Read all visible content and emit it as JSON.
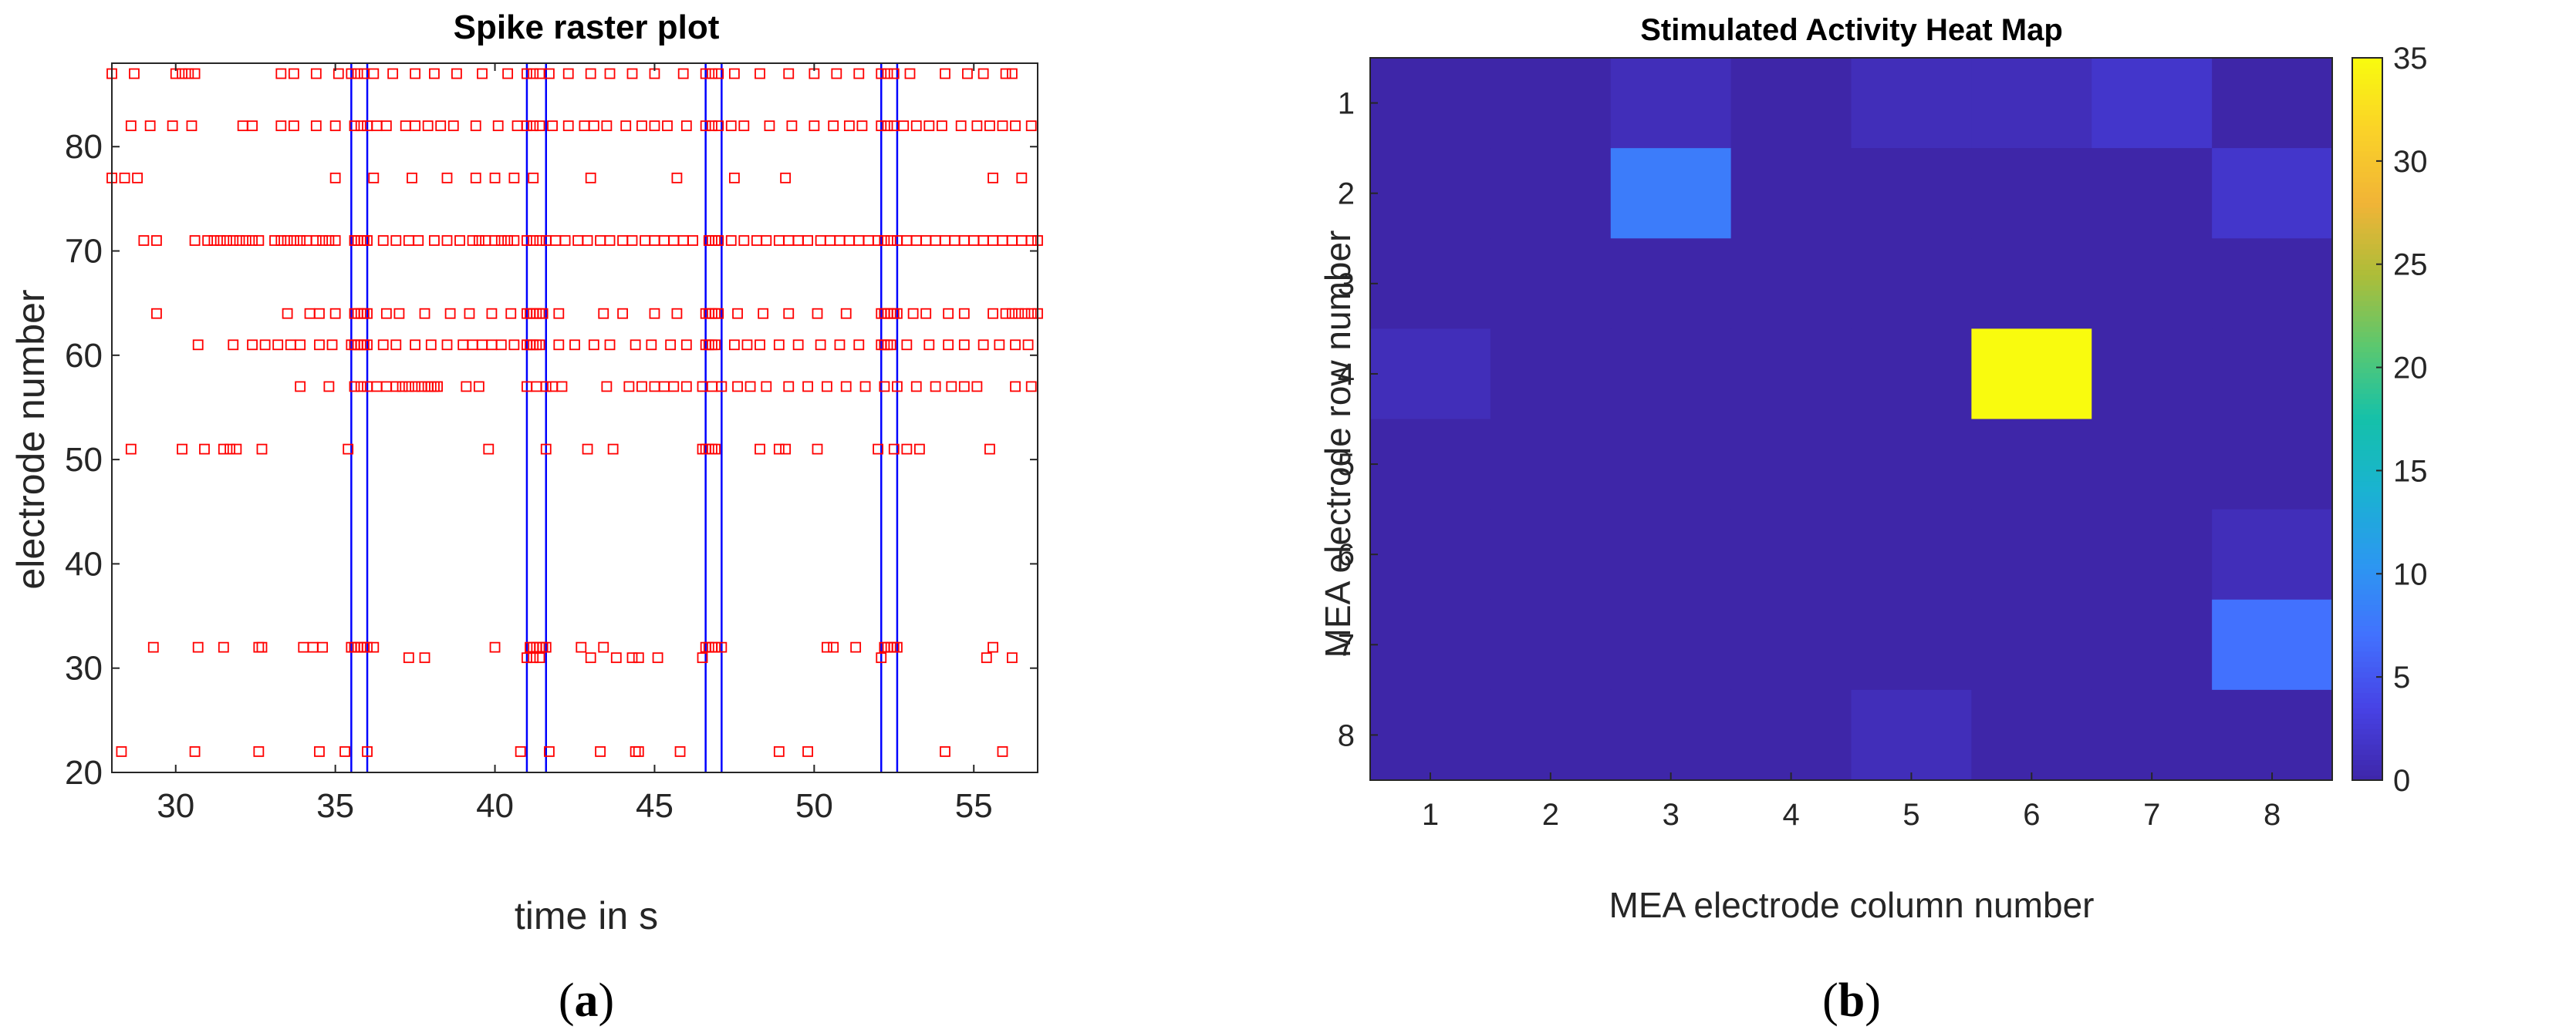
{
  "panels": {
    "a": {
      "label_prefix": "(",
      "label_letter": "a",
      "label_suffix": ")"
    },
    "b": {
      "label_prefix": "(",
      "label_letter": "b",
      "label_suffix": ")"
    }
  },
  "chart_data": [
    {
      "type": "scatter",
      "title": "Spike raster plot",
      "xlabel": "time in s",
      "ylabel": "electrode number",
      "xlim": [
        28,
        57
      ],
      "ylim": [
        20,
        88
      ],
      "xticks": [
        30,
        35,
        40,
        45,
        50,
        55
      ],
      "yticks": [
        20,
        30,
        40,
        50,
        60,
        70,
        80
      ],
      "marker": "hollow-square",
      "marker_color": "#ff0000",
      "stim_line_color": "#0000ff",
      "stimulus_lines": [
        35.5,
        36.0,
        41.0,
        41.6,
        46.6,
        47.1,
        52.1,
        52.6
      ],
      "grid": false,
      "series": [
        {
          "electrode": 87,
          "times": [
            28.0,
            28.7,
            30.0,
            30.2,
            30.4,
            30.6,
            33.3,
            33.7,
            34.4,
            35.1,
            35.5,
            35.7,
            35.9,
            36.2,
            36.8,
            37.5,
            38.1,
            38.8,
            39.6,
            40.4,
            41.0,
            41.2,
            41.4,
            41.7,
            42.3,
            43.0,
            43.6,
            44.3,
            45.0,
            45.9,
            46.6,
            46.8,
            47.0,
            47.5,
            48.3,
            49.2,
            50.0,
            50.7,
            51.4,
            52.1,
            52.3,
            52.5,
            53.0,
            54.1,
            54.8,
            55.3,
            56.0,
            56.2
          ]
        },
        {
          "electrode": 82,
          "times": [
            28.6,
            29.2,
            29.9,
            30.5,
            32.1,
            32.4,
            33.3,
            33.7,
            34.4,
            35.0,
            35.6,
            35.8,
            36.0,
            36.3,
            36.6,
            37.2,
            37.5,
            37.9,
            38.3,
            38.7,
            39.4,
            40.1,
            40.7,
            41.0,
            41.2,
            41.4,
            41.8,
            42.3,
            42.8,
            43.1,
            43.5,
            44.1,
            44.6,
            45.0,
            45.4,
            46.0,
            46.6,
            46.8,
            47.0,
            47.4,
            47.8,
            48.6,
            49.3,
            50.0,
            50.6,
            51.1,
            51.5,
            52.1,
            52.3,
            52.5,
            52.8,
            53.2,
            53.6,
            54.0,
            54.6,
            55.1,
            55.5,
            55.9,
            56.3,
            56.8
          ]
        },
        {
          "electrode": 77,
          "times": [
            28.0,
            28.4,
            28.8,
            35.0,
            36.2,
            37.4,
            38.5,
            39.4,
            40.0,
            40.6,
            41.2,
            43.0,
            45.7,
            47.5,
            49.1,
            55.6,
            56.5
          ]
        },
        {
          "electrode": 71,
          "times": [
            29.0,
            29.4,
            30.6,
            31.0,
            31.2,
            31.4,
            31.6,
            31.8,
            32.0,
            32.2,
            32.4,
            32.6,
            33.1,
            33.3,
            33.5,
            33.7,
            33.9,
            34.1,
            34.4,
            34.6,
            34.8,
            35.0,
            35.6,
            35.7,
            35.8,
            35.9,
            36.0,
            36.5,
            36.9,
            37.3,
            37.6,
            38.1,
            38.5,
            38.9,
            39.3,
            39.5,
            39.7,
            40.0,
            40.2,
            40.4,
            40.6,
            41.0,
            41.2,
            41.4,
            41.6,
            41.9,
            42.2,
            42.6,
            42.9,
            43.3,
            43.6,
            44.0,
            44.3,
            44.7,
            45.0,
            45.3,
            45.6,
            45.9,
            46.2,
            46.7,
            46.8,
            46.9,
            47.0,
            47.4,
            47.8,
            48.2,
            48.5,
            48.9,
            49.2,
            49.5,
            49.8,
            50.2,
            50.5,
            50.8,
            51.1,
            51.4,
            51.7,
            52.0,
            52.2,
            52.4,
            52.6,
            52.9,
            53.2,
            53.5,
            53.8,
            54.1,
            54.4,
            54.7,
            55.0,
            55.3,
            55.6,
            55.9,
            56.2,
            56.5,
            56.8,
            57.0
          ]
        },
        {
          "electrode": 64,
          "times": [
            29.4,
            33.5,
            34.2,
            34.5,
            35.0,
            35.6,
            35.7,
            35.8,
            35.9,
            36.0,
            36.6,
            37.0,
            37.8,
            38.6,
            39.2,
            39.9,
            40.5,
            41.0,
            41.1,
            41.2,
            41.3,
            41.4,
            41.5,
            42.0,
            43.4,
            44.0,
            45.0,
            45.7,
            46.6,
            46.7,
            46.8,
            46.9,
            47.0,
            47.6,
            48.4,
            49.2,
            50.1,
            51.0,
            52.1,
            52.2,
            52.3,
            52.4,
            52.5,
            52.6,
            53.1,
            53.5,
            54.2,
            54.7,
            55.6,
            56.0,
            56.2,
            56.4,
            56.6,
            56.8,
            57.0
          ]
        },
        {
          "electrode": 61,
          "times": [
            30.7,
            31.8,
            32.4,
            32.8,
            33.2,
            33.6,
            33.9,
            34.5,
            34.9,
            35.5,
            35.6,
            35.7,
            35.8,
            35.9,
            36.0,
            36.5,
            36.9,
            37.5,
            38.0,
            38.5,
            39.0,
            39.3,
            39.6,
            39.9,
            40.2,
            40.6,
            41.0,
            41.1,
            41.2,
            41.3,
            41.4,
            42.0,
            42.5,
            43.1,
            43.6,
            44.4,
            44.9,
            45.5,
            46.0,
            46.6,
            46.7,
            46.8,
            46.9,
            47.5,
            47.9,
            48.3,
            48.9,
            49.5,
            50.2,
            50.8,
            51.4,
            52.1,
            52.2,
            52.3,
            52.4,
            52.9,
            53.6,
            54.2,
            54.7,
            55.3,
            55.8,
            56.3,
            56.7
          ]
        },
        {
          "electrode": 57,
          "times": [
            33.9,
            34.8,
            35.6,
            35.8,
            36.0,
            36.3,
            36.6,
            36.9,
            37.1,
            37.3,
            37.5,
            37.7,
            37.9,
            38.0,
            38.1,
            38.2,
            39.1,
            39.5,
            41.0,
            41.3,
            41.6,
            41.8,
            42.1,
            43.5,
            44.2,
            44.6,
            45.0,
            45.3,
            45.6,
            46.0,
            46.5,
            46.8,
            47.1,
            47.6,
            48.0,
            48.5,
            49.2,
            49.8,
            50.4,
            51.0,
            51.6,
            52.2,
            52.6,
            53.2,
            53.8,
            54.3,
            54.7,
            55.1,
            56.3,
            56.8
          ]
        },
        {
          "electrode": 51,
          "times": [
            28.6,
            30.2,
            30.9,
            31.5,
            31.7,
            31.9,
            32.7,
            35.4,
            39.8,
            41.6,
            42.9,
            43.7,
            46.5,
            46.6,
            46.7,
            46.8,
            46.9,
            48.3,
            48.9,
            49.1,
            50.1,
            52.0,
            52.5,
            52.9,
            53.3,
            55.5
          ]
        },
        {
          "electrode": 32,
          "times": [
            29.3,
            30.7,
            31.5,
            32.6,
            32.7,
            34.0,
            34.3,
            34.6,
            35.5,
            35.6,
            35.7,
            35.8,
            35.9,
            36.0,
            36.2,
            40.0,
            41.1,
            41.2,
            41.3,
            41.4,
            41.5,
            41.6,
            42.7,
            43.4,
            46.6,
            46.7,
            46.8,
            46.9,
            47.1,
            50.4,
            50.6,
            51.3,
            52.2,
            52.3,
            52.4,
            52.5,
            52.6,
            55.6
          ]
        },
        {
          "electrode": 31,
          "times": [
            37.3,
            37.8,
            41.0,
            41.2,
            41.4,
            43.0,
            43.8,
            44.3,
            44.5,
            45.1,
            46.5,
            52.1,
            55.4,
            56.2
          ]
        },
        {
          "electrode": 22,
          "times": [
            28.3,
            30.6,
            32.6,
            34.5,
            35.3,
            36.0,
            40.8,
            41.7,
            43.3,
            44.4,
            44.5,
            45.8,
            48.9,
            49.8,
            54.1,
            55.9
          ]
        }
      ]
    },
    {
      "type": "heatmap",
      "title": "Stimulated Activity Heat Map",
      "xlabel": "MEA electrode column number",
      "ylabel": "MEA electrode row number",
      "x": [
        1,
        2,
        3,
        4,
        5,
        6,
        7,
        8
      ],
      "y": [
        1,
        2,
        3,
        4,
        5,
        6,
        7,
        8
      ],
      "colorscale": "parula",
      "clim": [
        0,
        35
      ],
      "colorbar_ticks": [
        0,
        5,
        10,
        15,
        20,
        25,
        30,
        35
      ],
      "values": [
        [
          0,
          0,
          1,
          0,
          1,
          1,
          2,
          0
        ],
        [
          0,
          0,
          8,
          0,
          0,
          0,
          0,
          2
        ],
        [
          0,
          0,
          0,
          0,
          0,
          0,
          0,
          0
        ],
        [
          1,
          0,
          0,
          0,
          0,
          35,
          0,
          0
        ],
        [
          0,
          0,
          0,
          0,
          0,
          0,
          0,
          0
        ],
        [
          0,
          0,
          0,
          0,
          0,
          0,
          0,
          1
        ],
        [
          0,
          0,
          0,
          0,
          0,
          0,
          0,
          7
        ],
        [
          0,
          0,
          0,
          0,
          1,
          0,
          0,
          0
        ]
      ]
    }
  ]
}
